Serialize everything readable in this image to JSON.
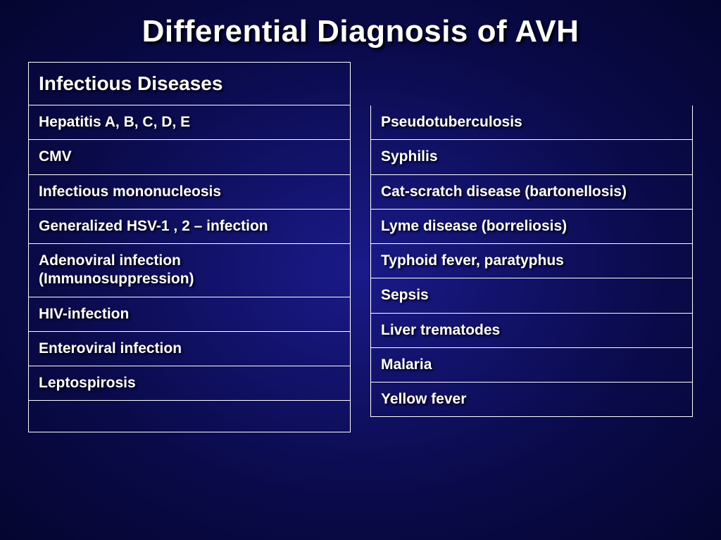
{
  "title": "Differential Diagnosis of AVH",
  "header": "Infectious Diseases",
  "left_column": [
    "Hepatitis  A, B, C, D, E",
    "CMV",
    "Infectious mononucleosis",
    "Generalized  HSV-1 , 2 – infection",
    "Adenoviral infection (Immunosuppression)",
    "HIV-infection",
    "Enteroviral infection",
    "Leptospirosis",
    ""
  ],
  "right_column": [
    "Pseudotuberculosis",
    "Syphilis",
    "Cat-scratch disease (bartonellosis)",
    "Lyme disease (borreliosis)",
    "Typhoid fever, paratyphus",
    "Sepsis",
    "Liver trematodes",
    "Malaria",
    "Yellow fever"
  ],
  "colors": {
    "background_center": "#1a1a8a",
    "background_edge": "#050530",
    "text": "#ffffff",
    "border": "#ffffff",
    "shadow": "#000000"
  },
  "typography": {
    "title_fontsize": 44,
    "header_fontsize": 28,
    "cell_fontsize": 21,
    "font_family": "Arial Narrow",
    "font_weight": "bold"
  }
}
